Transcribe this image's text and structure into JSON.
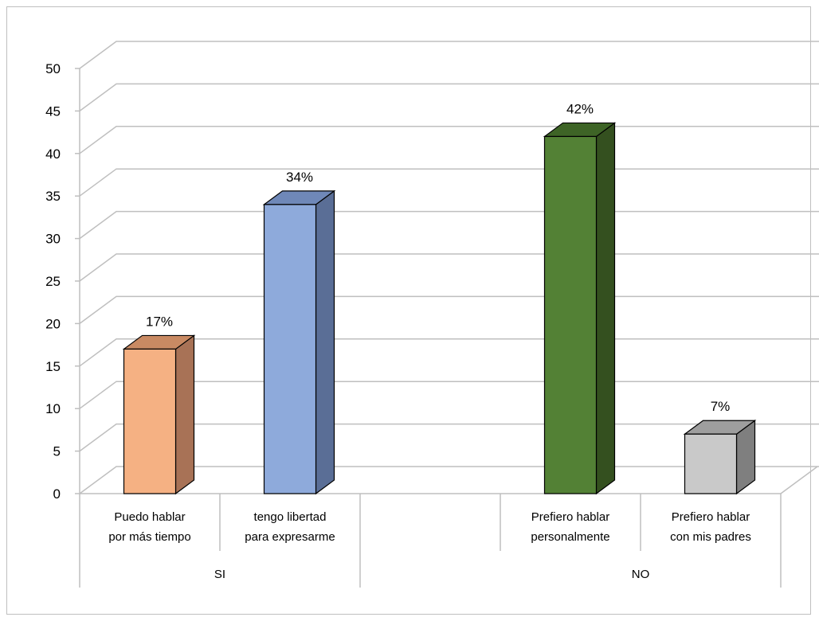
{
  "chart_data": {
    "type": "bar",
    "style": "3d-clustered-column",
    "ylim": [
      0,
      50
    ],
    "ytick_step": 5,
    "grid": true,
    "legend": "none",
    "groups": [
      {
        "label": "SI",
        "start": 0,
        "end": 2
      },
      {
        "label": "NO",
        "start": 3,
        "end": 5
      }
    ],
    "categories": [
      [
        "Puedo hablar",
        "por más tiempo"
      ],
      [
        "tengo libertad",
        "para expresarme"
      ],
      [
        "",
        ""
      ],
      [
        "Prefiero hablar",
        "personalmente"
      ],
      [
        "Prefiero hablar",
        "con mis padres"
      ]
    ],
    "bars": [
      {
        "slot": 0,
        "value": 17,
        "label": "17%",
        "front": "#f5b183",
        "side": "#a87256",
        "top": "#c98a63"
      },
      {
        "slot": 1,
        "value": 34,
        "label": "34%",
        "front": "#8eaadb",
        "side": "#5a6e96",
        "top": "#6f88b8"
      },
      {
        "slot": 3,
        "value": 42,
        "label": "42%",
        "front": "#538135",
        "side": "#34501f",
        "top": "#3e6426"
      },
      {
        "slot": 4,
        "value": 7,
        "label": "7%",
        "front": "#c9c9c9",
        "side": "#7f7f7f",
        "top": "#9e9e9e"
      }
    ]
  }
}
